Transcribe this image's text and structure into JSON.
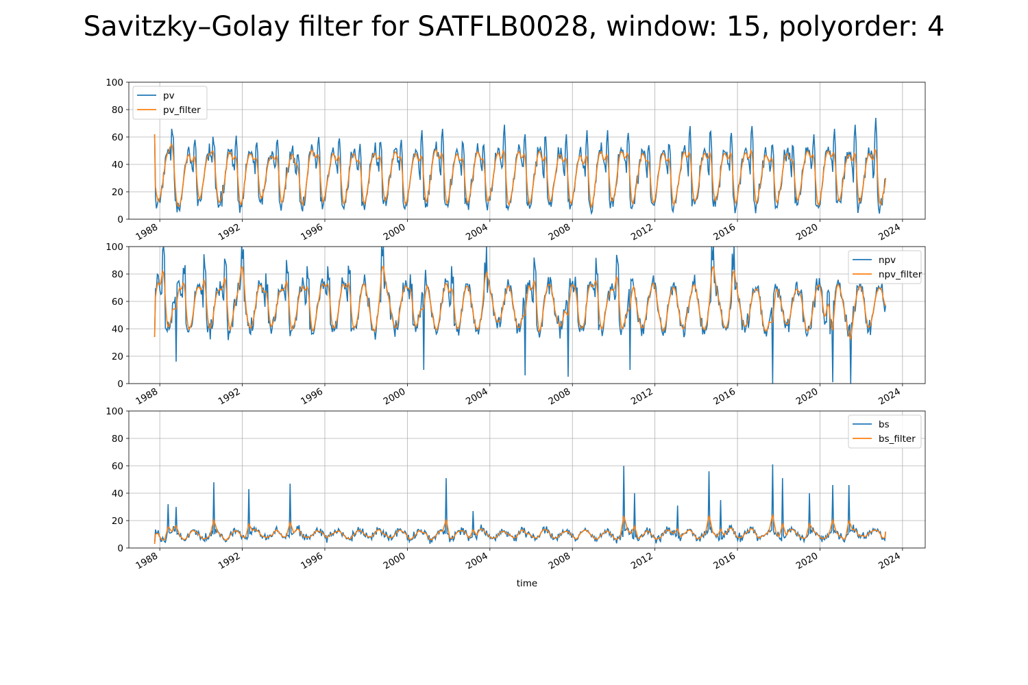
{
  "figure": {
    "title": "Savitzky–Golay filter for SATFLB0028, window: 15, polyorder: 4"
  },
  "colors": {
    "raw": "#1f77b4",
    "filter": "#ff7f0e",
    "grid": "#b0b0b0"
  },
  "chart_data": [
    {
      "type": "line",
      "legend_position": "upper-left",
      "grid": true,
      "xlabel": "",
      "xlim": [
        1986.5,
        2025.1
      ],
      "ylim": [
        0,
        100
      ],
      "xticks": [
        "1988",
        "1992",
        "1996",
        "2000",
        "2004",
        "2008",
        "2012",
        "2016",
        "2020",
        "2024"
      ],
      "yticks": [
        "0",
        "20",
        "40",
        "60",
        "80",
        "100"
      ],
      "seasonal_model": {
        "mean": 30,
        "amp": 20,
        "phase": 0.15,
        "noise": 6
      },
      "start_point": {
        "x": 1987.75,
        "y": 62
      },
      "end_point": {
        "x": 2023.2,
        "y": 30
      },
      "peaks_approx": [
        {
          "x": 1988.6,
          "y": 62
        },
        {
          "x": 1989.7,
          "y": 58
        },
        {
          "x": 1990.6,
          "y": 55
        },
        {
          "x": 1991.7,
          "y": 61
        },
        {
          "x": 1992.7,
          "y": 56
        },
        {
          "x": 1993.7,
          "y": 58
        },
        {
          "x": 1994.7,
          "y": 47
        },
        {
          "x": 1995.7,
          "y": 60
        },
        {
          "x": 1996.7,
          "y": 59
        },
        {
          "x": 1997.7,
          "y": 55
        },
        {
          "x": 1998.7,
          "y": 56
        },
        {
          "x": 1999.7,
          "y": 58
        },
        {
          "x": 2000.7,
          "y": 65
        },
        {
          "x": 2001.7,
          "y": 66
        },
        {
          "x": 2002.7,
          "y": 55
        },
        {
          "x": 2003.7,
          "y": 54
        },
        {
          "x": 2004.7,
          "y": 69
        },
        {
          "x": 2005.7,
          "y": 62
        },
        {
          "x": 2006.7,
          "y": 60
        },
        {
          "x": 2007.7,
          "y": 62
        },
        {
          "x": 2008.7,
          "y": 65
        },
        {
          "x": 2009.7,
          "y": 65
        },
        {
          "x": 2010.7,
          "y": 63
        },
        {
          "x": 2011.7,
          "y": 54
        },
        {
          "x": 2012.7,
          "y": 54
        },
        {
          "x": 2013.7,
          "y": 68
        },
        {
          "x": 2014.7,
          "y": 64
        },
        {
          "x": 2015.7,
          "y": 63
        },
        {
          "x": 2016.7,
          "y": 68
        },
        {
          "x": 2017.7,
          "y": 54
        },
        {
          "x": 2018.7,
          "y": 53
        },
        {
          "x": 2019.7,
          "y": 62
        },
        {
          "x": 2020.7,
          "y": 66
        },
        {
          "x": 2021.7,
          "y": 69
        },
        {
          "x": 2022.7,
          "y": 74
        }
      ],
      "series": [
        {
          "name": "pv",
          "role": "raw"
        },
        {
          "name": "pv_filter",
          "role": "filter"
        }
      ]
    },
    {
      "type": "line",
      "legend_position": "upper-right",
      "grid": true,
      "xlabel": "",
      "xlim": [
        1986.5,
        2025.1
      ],
      "ylim": [
        0,
        100
      ],
      "xticks": [
        "1988",
        "1992",
        "1996",
        "2000",
        "2004",
        "2008",
        "2012",
        "2016",
        "2020",
        "2024"
      ],
      "yticks": [
        "0",
        "20",
        "40",
        "60",
        "80",
        "100"
      ],
      "seasonal_model": {
        "mean": 56,
        "amp": 17,
        "phase": 0.65,
        "noise": 7
      },
      "start_point": {
        "x": 1987.75,
        "y": 34
      },
      "end_point": {
        "x": 2023.2,
        "y": 57
      },
      "peaks_approx": [
        {
          "x": 1988.2,
          "y": 100
        },
        {
          "x": 1989.2,
          "y": 80
        },
        {
          "x": 1990.2,
          "y": 85
        },
        {
          "x": 1991.2,
          "y": 89
        },
        {
          "x": 1992.0,
          "y": 91
        },
        {
          "x": 1993.2,
          "y": 66
        },
        {
          "x": 1994.2,
          "y": 81
        },
        {
          "x": 1995.2,
          "y": 77
        },
        {
          "x": 1996.2,
          "y": 76
        },
        {
          "x": 1997.2,
          "y": 80
        },
        {
          "x": 1998.8,
          "y": 93
        },
        {
          "x": 2000.2,
          "y": 67
        },
        {
          "x": 2002.2,
          "y": 73
        },
        {
          "x": 2003.8,
          "y": 78
        },
        {
          "x": 2006.2,
          "y": 86
        },
        {
          "x": 2008.2,
          "y": 66
        },
        {
          "x": 2009.2,
          "y": 80
        },
        {
          "x": 2010.2,
          "y": 90
        },
        {
          "x": 2014.8,
          "y": 90
        },
        {
          "x": 2015.8,
          "y": 83
        },
        {
          "x": 2020.4,
          "y": 68
        }
      ],
      "dips_approx": [
        {
          "x": 1988.8,
          "y": 16
        },
        {
          "x": 2000.8,
          "y": 10
        },
        {
          "x": 2005.7,
          "y": 6
        },
        {
          "x": 2007.8,
          "y": 5
        },
        {
          "x": 2010.8,
          "y": 10
        },
        {
          "x": 2017.7,
          "y": 0
        },
        {
          "x": 2020.6,
          "y": 1
        },
        {
          "x": 2021.5,
          "y": 0
        }
      ],
      "series": [
        {
          "name": "npv",
          "role": "raw"
        },
        {
          "name": "npv_filter",
          "role": "filter"
        }
      ]
    },
    {
      "type": "line",
      "legend_position": "upper-right",
      "grid": true,
      "xlabel": "time",
      "xlim": [
        1986.5,
        2025.1
      ],
      "ylim": [
        0,
        100
      ],
      "xticks": [
        "1988",
        "1992",
        "1996",
        "2000",
        "2004",
        "2008",
        "2012",
        "2016",
        "2020",
        "2024"
      ],
      "yticks": [
        "0",
        "20",
        "40",
        "60",
        "80",
        "100"
      ],
      "seasonal_model": {
        "mean": 10,
        "amp": 3,
        "phase": 0.4,
        "noise": 3
      },
      "start_point": {
        "x": 1987.75,
        "y": 3
      },
      "end_point": {
        "x": 2023.2,
        "y": 12
      },
      "spikes_approx": [
        {
          "x": 1988.4,
          "y": 32
        },
        {
          "x": 1988.8,
          "y": 30
        },
        {
          "x": 1990.6,
          "y": 48
        },
        {
          "x": 1992.3,
          "y": 43
        },
        {
          "x": 1994.3,
          "y": 47
        },
        {
          "x": 2001.9,
          "y": 51
        },
        {
          "x": 2003.2,
          "y": 27
        },
        {
          "x": 2010.5,
          "y": 60
        },
        {
          "x": 2011.0,
          "y": 40
        },
        {
          "x": 2013.1,
          "y": 31
        },
        {
          "x": 2014.6,
          "y": 56
        },
        {
          "x": 2015.2,
          "y": 35
        },
        {
          "x": 2017.7,
          "y": 61
        },
        {
          "x": 2018.2,
          "y": 51
        },
        {
          "x": 2019.5,
          "y": 40
        },
        {
          "x": 2020.6,
          "y": 46
        },
        {
          "x": 2021.4,
          "y": 46
        }
      ],
      "series": [
        {
          "name": "bs",
          "role": "raw"
        },
        {
          "name": "bs_filter",
          "role": "filter"
        }
      ]
    }
  ]
}
